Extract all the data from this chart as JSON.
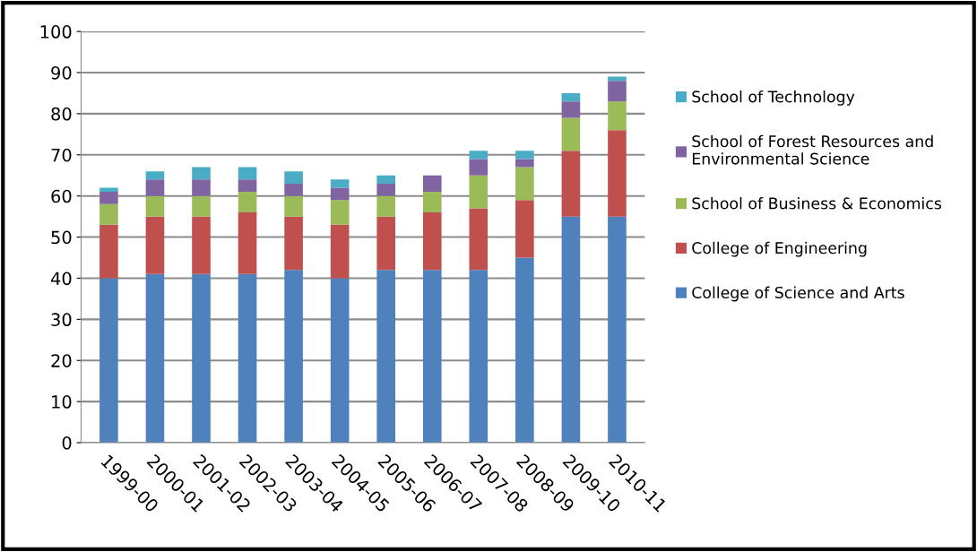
{
  "chart_data": {
    "type": "bar",
    "stacked": true,
    "categories": [
      "1999-00",
      "2000-01",
      "2001-02",
      "2002-03",
      "2003-04",
      "2004-05",
      "2005-06",
      "2006-07",
      "2007-08",
      "2008-09",
      "2009-10",
      "2010-11"
    ],
    "series": [
      {
        "name": "College of Science and Arts",
        "color": "#4f81bd",
        "values": [
          40,
          41,
          41,
          41,
          42,
          40,
          42,
          42,
          42,
          45,
          55,
          55
        ]
      },
      {
        "name": "College of Engineering",
        "color": "#c0504d",
        "values": [
          13,
          14,
          14,
          15,
          13,
          13,
          13,
          14,
          15,
          14,
          16,
          21
        ]
      },
      {
        "name": "School of Business & Economics",
        "color": "#9bbb59",
        "values": [
          5,
          5,
          5,
          5,
          5,
          6,
          5,
          5,
          8,
          8,
          8,
          7
        ]
      },
      {
        "name": "School of Forest Resources and\nEnvironmental Science",
        "color": "#8064a2",
        "values": [
          3,
          4,
          4,
          3,
          3,
          3,
          3,
          4,
          4,
          2,
          4,
          5
        ]
      },
      {
        "name": "School of Technology",
        "color": "#4bacc6",
        "values": [
          1,
          2,
          3,
          3,
          3,
          2,
          2,
          0,
          2,
          2,
          2,
          1
        ]
      }
    ],
    "ylim": [
      0,
      100
    ],
    "yticks": [
      0,
      10,
      20,
      30,
      40,
      50,
      60,
      70,
      80,
      90,
      100
    ],
    "grid": "y",
    "legend": "right"
  }
}
